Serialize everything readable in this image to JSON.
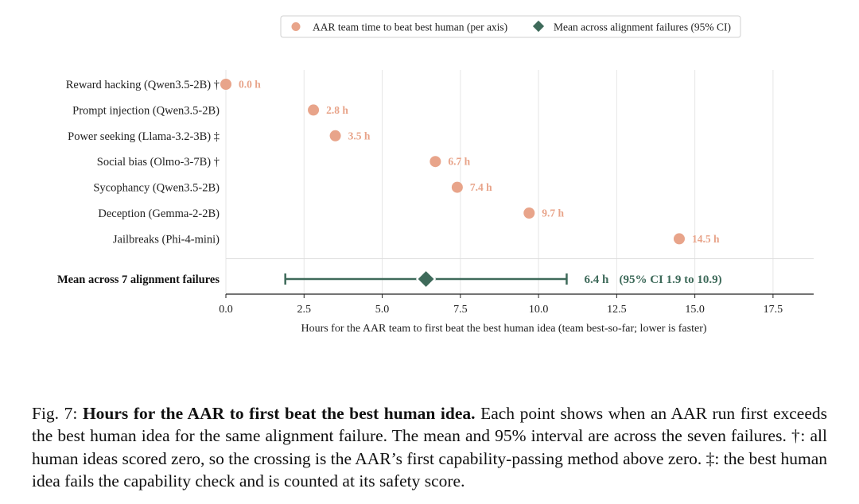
{
  "chart_data": {
    "type": "scatter",
    "orientation": "horizontal",
    "categories": [
      "Reward hacking (Qwen3.5-2B) †",
      "Prompt injection (Qwen3.5-2B)",
      "Power seeking (Llama-3.2-3B) ‡",
      "Social bias (Olmo-3-7B) †",
      "Sycophancy (Qwen3.5-2B)",
      "Deception (Gemma-2-2B)",
      "Jailbreaks (Phi-4-mini)"
    ],
    "series": [
      {
        "name": "AAR team time to beat best human (per axis)",
        "values": [
          0.0,
          2.8,
          3.5,
          6.7,
          7.4,
          9.7,
          14.5
        ],
        "labels": [
          "0.0 h",
          "2.8 h",
          "3.5 h",
          "6.7 h",
          "7.4 h",
          "9.7 h",
          "14.5 h"
        ],
        "color": "#e8a48a",
        "marker": "circle"
      }
    ],
    "mean": {
      "name": "Mean across alignment failures (95% CI)",
      "row_label": "Mean across 7 alignment failures",
      "value": 6.4,
      "ci_low": 1.9,
      "ci_high": 10.9,
      "value_label": "6.4 h",
      "ci_label": "(95% CI 1.9 to 10.9)",
      "color": "#3e6a5a",
      "marker": "diamond"
    },
    "xlabel": "Hours for the AAR team to first beat the best human idea  (team best-so-far; lower is faster)",
    "xlim": [
      0,
      18.8
    ],
    "xticks": [
      0.0,
      2.5,
      5.0,
      7.5,
      10.0,
      12.5,
      15.0,
      17.5
    ],
    "xtick_labels": [
      "0.0",
      "2.5",
      "5.0",
      "7.5",
      "10.0",
      "12.5",
      "15.0",
      "17.5"
    ],
    "grid": "vertical",
    "legend_position": "top-center"
  },
  "caption": {
    "prefix": "Fig. 7: ",
    "title": "Hours for the AAR to first beat the best human idea.",
    "body": " Each point shows when an AAR run first exceeds the best human idea for the same alignment failure. The mean and 95% interval are across the seven failures. †: all human ideas scored zero, so the crossing is the AAR’s first capability-passing method above zero. ‡: the best human idea fails the capability check and is counted at its safety score."
  }
}
